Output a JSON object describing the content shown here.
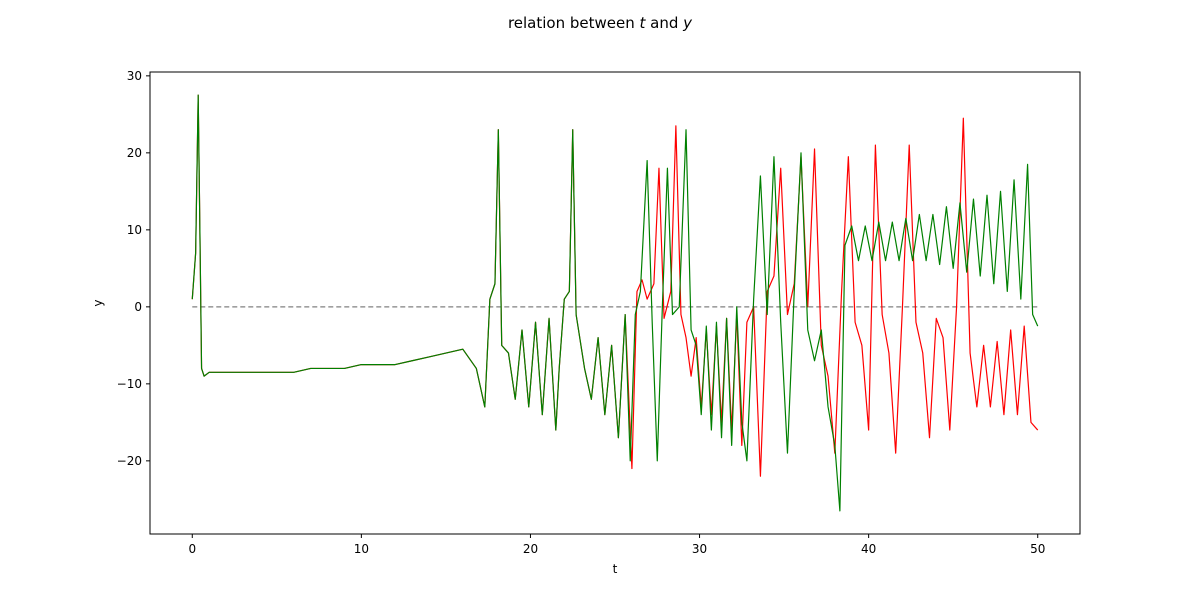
{
  "chart_data": {
    "type": "line",
    "title_parts": [
      "relation between ",
      "t",
      " and ",
      "y"
    ],
    "xlabel": "t",
    "ylabel": "y",
    "xlim": [
      -2.5,
      52.5
    ],
    "ylim": [
      -29.5,
      30.5
    ],
    "x_ticks": [
      0,
      10,
      20,
      30,
      40,
      50
    ],
    "y_ticks": [
      -20,
      -10,
      0,
      10,
      20,
      30
    ],
    "grid": false,
    "legend": "none",
    "reference_line": {
      "y": 0,
      "x_range": [
        0,
        50
      ],
      "style": "dashed",
      "color": "#808080"
    },
    "series": [
      {
        "color": "#ff0000",
        "values": [
          [
            0.0,
            1.0
          ],
          [
            0.2,
            7.0
          ],
          [
            0.35,
            27.5
          ],
          [
            0.45,
            10.0
          ],
          [
            0.55,
            -8.0
          ],
          [
            0.7,
            -9.0
          ],
          [
            1.0,
            -8.5
          ],
          [
            2.0,
            -8.5
          ],
          [
            3.0,
            -8.5
          ],
          [
            4.0,
            -8.5
          ],
          [
            5.0,
            -8.5
          ],
          [
            6.0,
            -8.5
          ],
          [
            7.0,
            -8.0
          ],
          [
            8.0,
            -8.0
          ],
          [
            9.0,
            -8.0
          ],
          [
            10.0,
            -7.5
          ],
          [
            11.0,
            -7.5
          ],
          [
            12.0,
            -7.5
          ],
          [
            13.0,
            -7.0
          ],
          [
            14.0,
            -6.5
          ],
          [
            15.0,
            -6.0
          ],
          [
            16.0,
            -5.5
          ],
          [
            16.8,
            -8.0
          ],
          [
            17.3,
            -13.0
          ],
          [
            17.6,
            1.0
          ],
          [
            17.9,
            3.0
          ],
          [
            18.1,
            23.0
          ],
          [
            18.3,
            -5.0
          ],
          [
            18.7,
            -6.0
          ],
          [
            19.1,
            -12.0
          ],
          [
            19.5,
            -3.0
          ],
          [
            19.9,
            -13.0
          ],
          [
            20.3,
            -2.0
          ],
          [
            20.7,
            -14.0
          ],
          [
            21.1,
            -1.5
          ],
          [
            21.5,
            -16.0
          ],
          [
            21.7,
            -8.0
          ],
          [
            22.0,
            1.0
          ],
          [
            22.3,
            2.0
          ],
          [
            22.5,
            23.0
          ],
          [
            22.7,
            -1.0
          ],
          [
            23.2,
            -8.0
          ],
          [
            23.6,
            -12.0
          ],
          [
            24.0,
            -4.0
          ],
          [
            24.4,
            -14.0
          ],
          [
            24.8,
            -5.0
          ],
          [
            25.2,
            -17.0
          ],
          [
            25.6,
            -1.0
          ],
          [
            26.0,
            -21.0
          ],
          [
            26.3,
            2.0
          ],
          [
            26.6,
            3.5
          ],
          [
            26.9,
            1.0
          ],
          [
            27.3,
            3.0
          ],
          [
            27.6,
            18.0
          ],
          [
            27.9,
            -1.5
          ],
          [
            28.3,
            2.0
          ],
          [
            28.6,
            23.5
          ],
          [
            28.9,
            -1.0
          ],
          [
            29.2,
            -4.0
          ],
          [
            29.5,
            -9.0
          ],
          [
            29.8,
            -4.0
          ],
          [
            30.1,
            -13.0
          ],
          [
            30.4,
            -3.0
          ],
          [
            30.7,
            -14.0
          ],
          [
            31.0,
            -2.5
          ],
          [
            31.3,
            -15.0
          ],
          [
            31.6,
            -1.5
          ],
          [
            31.9,
            -16.0
          ],
          [
            32.2,
            -1.0
          ],
          [
            32.5,
            -18.0
          ],
          [
            32.8,
            -2.0
          ],
          [
            33.2,
            0.0
          ],
          [
            33.6,
            -22.0
          ],
          [
            34.0,
            2.0
          ],
          [
            34.4,
            4.0
          ],
          [
            34.8,
            18.0
          ],
          [
            35.2,
            -1.0
          ],
          [
            35.6,
            3.0
          ],
          [
            36.0,
            19.5
          ],
          [
            36.4,
            0.0
          ],
          [
            36.8,
            20.5
          ],
          [
            37.2,
            -5.0
          ],
          [
            37.6,
            -9.0
          ],
          [
            38.0,
            -19.0
          ],
          [
            38.4,
            2.0
          ],
          [
            38.8,
            19.5
          ],
          [
            39.2,
            -2.0
          ],
          [
            39.6,
            -5.0
          ],
          [
            40.0,
            -16.0
          ],
          [
            40.4,
            21.0
          ],
          [
            40.8,
            -1.0
          ],
          [
            41.2,
            -6.0
          ],
          [
            41.6,
            -19.0
          ],
          [
            42.0,
            0.0
          ],
          [
            42.4,
            21.0
          ],
          [
            42.8,
            -2.0
          ],
          [
            43.2,
            -6.0
          ],
          [
            43.6,
            -17.0
          ],
          [
            44.0,
            -1.5
          ],
          [
            44.4,
            -4.0
          ],
          [
            44.8,
            -16.0
          ],
          [
            45.2,
            0.0
          ],
          [
            45.6,
            24.5
          ],
          [
            46.0,
            -6.0
          ],
          [
            46.4,
            -13.0
          ],
          [
            46.8,
            -5.0
          ],
          [
            47.2,
            -13.0
          ],
          [
            47.6,
            -4.5
          ],
          [
            48.0,
            -14.0
          ],
          [
            48.4,
            -3.0
          ],
          [
            48.8,
            -14.0
          ],
          [
            49.2,
            -2.5
          ],
          [
            49.6,
            -15.0
          ],
          [
            50.0,
            -16.0
          ]
        ]
      },
      {
        "color": "#008000",
        "values": [
          [
            0.0,
            1.0
          ],
          [
            0.2,
            7.0
          ],
          [
            0.35,
            27.5
          ],
          [
            0.45,
            10.0
          ],
          [
            0.55,
            -8.0
          ],
          [
            0.7,
            -9.0
          ],
          [
            1.0,
            -8.5
          ],
          [
            2.0,
            -8.5
          ],
          [
            3.0,
            -8.5
          ],
          [
            4.0,
            -8.5
          ],
          [
            5.0,
            -8.5
          ],
          [
            6.0,
            -8.5
          ],
          [
            7.0,
            -8.0
          ],
          [
            8.0,
            -8.0
          ],
          [
            9.0,
            -8.0
          ],
          [
            10.0,
            -7.5
          ],
          [
            11.0,
            -7.5
          ],
          [
            12.0,
            -7.5
          ],
          [
            13.0,
            -7.0
          ],
          [
            14.0,
            -6.5
          ],
          [
            15.0,
            -6.0
          ],
          [
            16.0,
            -5.5
          ],
          [
            16.8,
            -8.0
          ],
          [
            17.3,
            -13.0
          ],
          [
            17.6,
            1.0
          ],
          [
            17.9,
            3.0
          ],
          [
            18.1,
            23.0
          ],
          [
            18.3,
            -5.0
          ],
          [
            18.7,
            -6.0
          ],
          [
            19.1,
            -12.0
          ],
          [
            19.5,
            -3.0
          ],
          [
            19.9,
            -13.0
          ],
          [
            20.3,
            -2.0
          ],
          [
            20.7,
            -14.0
          ],
          [
            21.1,
            -1.5
          ],
          [
            21.5,
            -16.0
          ],
          [
            21.7,
            -8.0
          ],
          [
            22.0,
            1.0
          ],
          [
            22.3,
            2.0
          ],
          [
            22.5,
            23.0
          ],
          [
            22.7,
            -1.0
          ],
          [
            23.2,
            -8.0
          ],
          [
            23.6,
            -12.0
          ],
          [
            24.0,
            -4.0
          ],
          [
            24.4,
            -14.0
          ],
          [
            24.8,
            -5.0
          ],
          [
            25.2,
            -17.0
          ],
          [
            25.6,
            -1.0
          ],
          [
            25.9,
            -20.0
          ],
          [
            26.2,
            -1.0
          ],
          [
            26.5,
            2.0
          ],
          [
            26.9,
            19.0
          ],
          [
            27.2,
            -2.0
          ],
          [
            27.5,
            -20.0
          ],
          [
            27.8,
            0.0
          ],
          [
            28.1,
            18.0
          ],
          [
            28.4,
            -1.0
          ],
          [
            28.8,
            0.0
          ],
          [
            29.2,
            23.0
          ],
          [
            29.5,
            -3.0
          ],
          [
            29.8,
            -5.0
          ],
          [
            30.1,
            -14.0
          ],
          [
            30.4,
            -2.5
          ],
          [
            30.7,
            -16.0
          ],
          [
            31.0,
            -2.0
          ],
          [
            31.3,
            -17.0
          ],
          [
            31.6,
            -1.5
          ],
          [
            31.9,
            -18.0
          ],
          [
            32.2,
            0.0
          ],
          [
            32.5,
            -15.0
          ],
          [
            32.8,
            -20.0
          ],
          [
            33.2,
            1.0
          ],
          [
            33.6,
            17.0
          ],
          [
            34.0,
            -1.0
          ],
          [
            34.4,
            19.5
          ],
          [
            34.8,
            -2.0
          ],
          [
            35.2,
            -19.0
          ],
          [
            35.6,
            2.0
          ],
          [
            36.0,
            20.0
          ],
          [
            36.4,
            -3.0
          ],
          [
            36.8,
            -7.0
          ],
          [
            37.2,
            -3.0
          ],
          [
            37.6,
            -13.0
          ],
          [
            38.0,
            -18.0
          ],
          [
            38.3,
            -26.5
          ],
          [
            38.6,
            8.0
          ],
          [
            39.0,
            10.5
          ],
          [
            39.4,
            6.0
          ],
          [
            39.8,
            10.5
          ],
          [
            40.2,
            6.0
          ],
          [
            40.6,
            11.0
          ],
          [
            41.0,
            6.0
          ],
          [
            41.4,
            11.0
          ],
          [
            41.8,
            6.0
          ],
          [
            42.2,
            11.5
          ],
          [
            42.6,
            6.0
          ],
          [
            43.0,
            12.0
          ],
          [
            43.4,
            6.0
          ],
          [
            43.8,
            12.0
          ],
          [
            44.2,
            5.5
          ],
          [
            44.6,
            13.0
          ],
          [
            45.0,
            5.0
          ],
          [
            45.4,
            13.5
          ],
          [
            45.8,
            4.5
          ],
          [
            46.2,
            14.0
          ],
          [
            46.6,
            4.0
          ],
          [
            47.0,
            14.5
          ],
          [
            47.4,
            3.0
          ],
          [
            47.8,
            15.0
          ],
          [
            48.2,
            2.0
          ],
          [
            48.6,
            16.5
          ],
          [
            49.0,
            1.0
          ],
          [
            49.4,
            18.5
          ],
          [
            49.7,
            -1.0
          ],
          [
            50.0,
            -2.5
          ]
        ]
      }
    ]
  }
}
